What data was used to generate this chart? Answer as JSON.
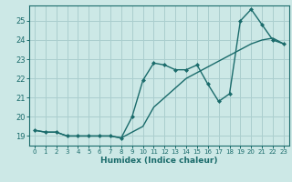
{
  "xlabel": "Humidex (Indice chaleur)",
  "ylabel": "",
  "bg_color": "#cce8e6",
  "grid_color": "#aacece",
  "line_color": "#1a6b6b",
  "xlim": [
    -0.5,
    23.5
  ],
  "ylim": [
    18.5,
    25.8
  ],
  "xticks": [
    0,
    1,
    2,
    3,
    4,
    5,
    6,
    7,
    8,
    9,
    10,
    11,
    12,
    13,
    14,
    15,
    16,
    17,
    18,
    19,
    20,
    21,
    22,
    23
  ],
  "yticks": [
    19,
    20,
    21,
    22,
    23,
    24,
    25
  ],
  "line1_x": [
    0,
    1,
    2,
    3,
    4,
    5,
    6,
    7,
    8,
    9,
    10,
    11,
    12,
    13,
    14,
    15,
    16,
    17,
    18,
    19,
    20,
    21,
    22,
    23
  ],
  "line1_y": [
    19.3,
    19.2,
    19.2,
    19.0,
    19.0,
    19.0,
    19.0,
    19.0,
    18.9,
    20.0,
    21.9,
    22.8,
    22.7,
    22.45,
    22.45,
    22.7,
    21.7,
    20.8,
    21.2,
    25.0,
    25.6,
    24.8,
    24.0,
    23.8
  ],
  "line2_x": [
    0,
    1,
    2,
    3,
    4,
    5,
    6,
    7,
    8,
    9,
    10,
    11,
    12,
    13,
    14,
    15,
    16,
    17,
    18,
    19,
    20,
    21,
    22,
    23
  ],
  "line2_y": [
    19.3,
    19.2,
    19.2,
    19.0,
    19.0,
    19.0,
    19.0,
    19.0,
    18.9,
    19.2,
    19.5,
    20.5,
    21.0,
    21.5,
    22.0,
    22.3,
    22.6,
    22.9,
    23.2,
    23.5,
    23.8,
    24.0,
    24.1,
    23.8
  ]
}
